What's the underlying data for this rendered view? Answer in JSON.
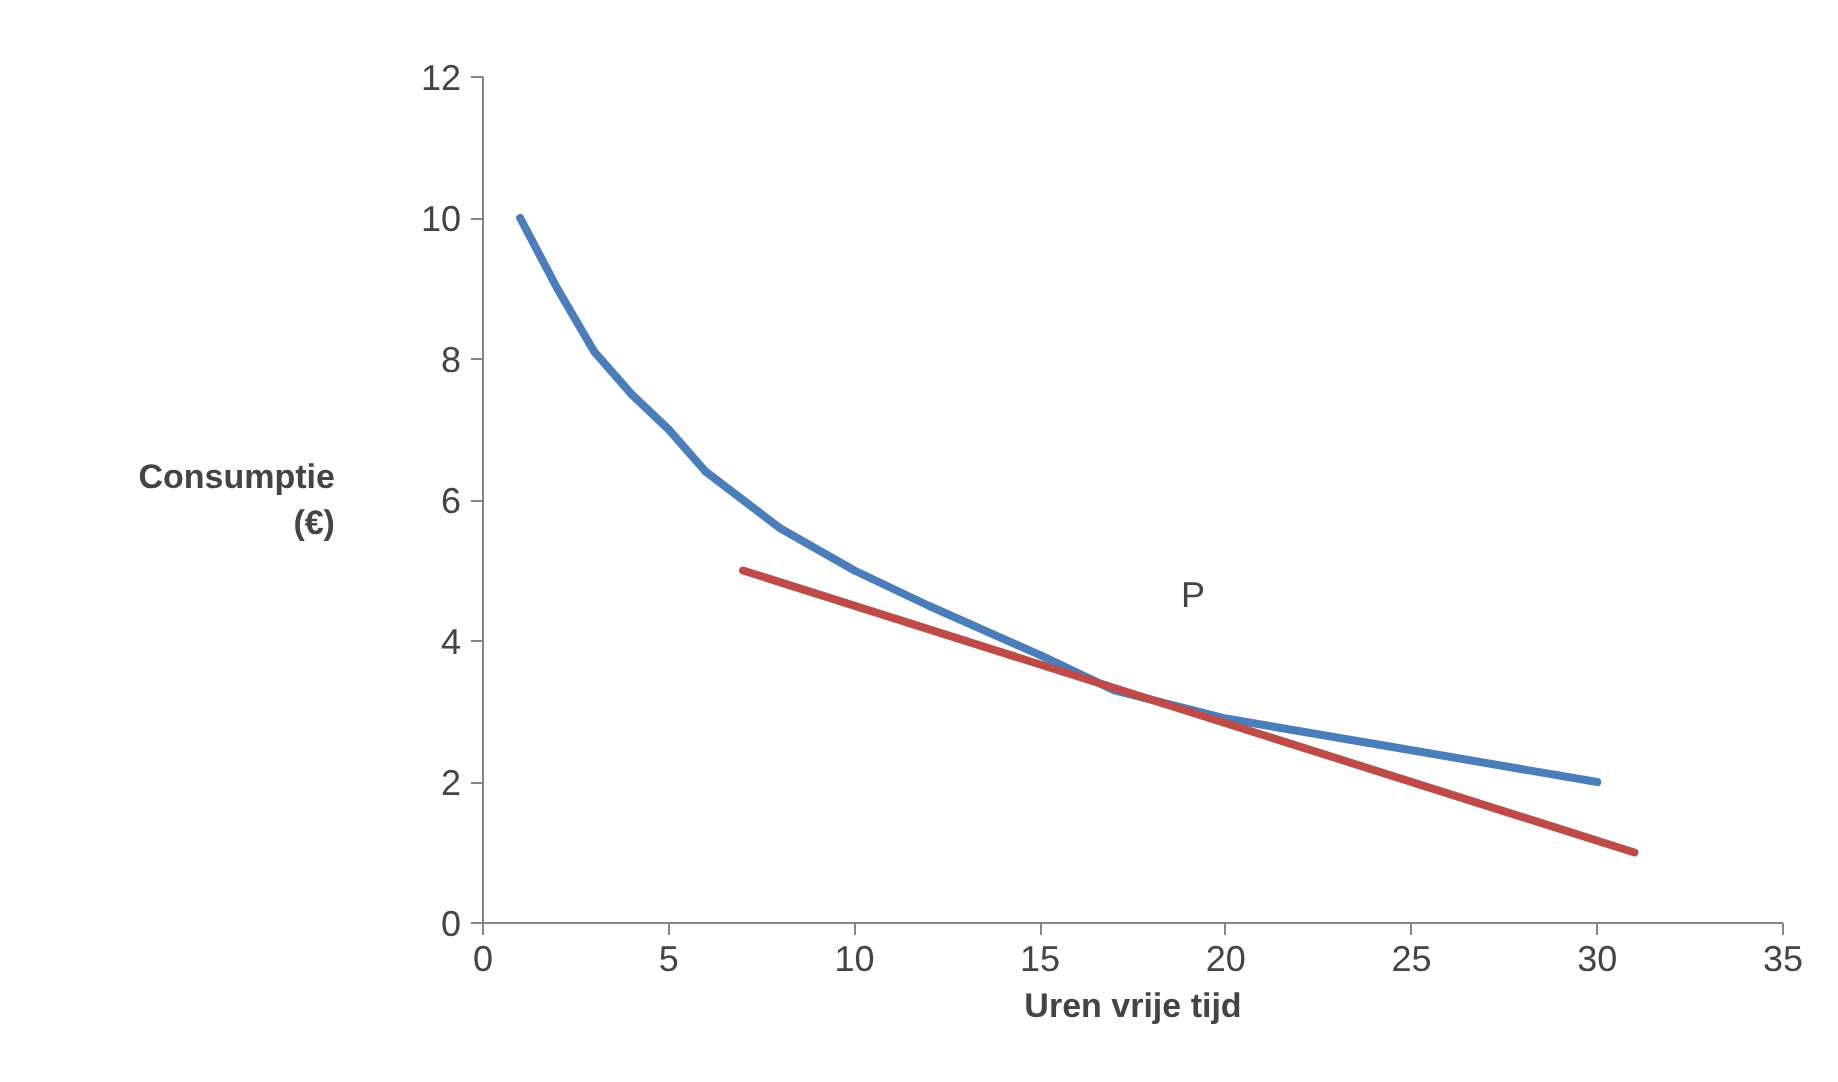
{
  "chart_data": {
    "type": "line",
    "xlabel": "Uren vrije tijd",
    "ylabel": "Consumptie\n(€)",
    "xlim": [
      0,
      35
    ],
    "ylim": [
      0,
      12
    ],
    "xticks": [
      0,
      5,
      10,
      15,
      20,
      25,
      30,
      35
    ],
    "yticks": [
      0,
      2,
      4,
      6,
      8,
      10,
      12
    ],
    "grid": false,
    "marker": "none",
    "line_style": "solid",
    "series": [
      {
        "color": "#4a7ebb",
        "x": [
          1,
          2,
          3,
          4,
          5,
          6,
          7,
          8,
          10,
          12,
          15,
          17,
          20,
          25,
          30
        ],
        "values": [
          10,
          9,
          8.1,
          7.5,
          7,
          6.4,
          6,
          5.6,
          5,
          4.5,
          3.8,
          3.3,
          2.9,
          2.45,
          2
        ]
      },
      {
        "color": "#be4b48",
        "x": [
          7,
          31
        ],
        "values": [
          5,
          1
        ]
      }
    ],
    "annotations": [
      "P"
    ]
  }
}
